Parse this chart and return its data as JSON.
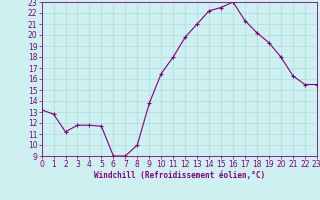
{
  "hours": [
    0,
    1,
    2,
    3,
    4,
    5,
    6,
    7,
    8,
    9,
    10,
    11,
    12,
    13,
    14,
    15,
    16,
    17,
    18,
    19,
    20,
    21,
    22,
    23
  ],
  "values": [
    13.2,
    12.8,
    11.2,
    11.8,
    11.8,
    11.7,
    9.0,
    9.0,
    10.0,
    13.8,
    16.5,
    18.0,
    19.8,
    21.0,
    22.2,
    22.5,
    23.0,
    21.3,
    20.2,
    19.3,
    18.0,
    16.3,
    15.5,
    15.5
  ],
  "line_color": "#800080",
  "marker": "+",
  "marker_size": 3,
  "bg_color": "#cff0f0",
  "grid_color": "#aadddd",
  "tick_color": "#800080",
  "label_color": "#800080",
  "xlabel": "Windchill (Refroidissement éolien,°C)",
  "ylim": [
    9,
    23
  ],
  "xlim": [
    0,
    23
  ],
  "yticks": [
    9,
    10,
    11,
    12,
    13,
    14,
    15,
    16,
    17,
    18,
    19,
    20,
    21,
    22,
    23
  ],
  "xticks": [
    0,
    1,
    2,
    3,
    4,
    5,
    6,
    7,
    8,
    9,
    10,
    11,
    12,
    13,
    14,
    15,
    16,
    17,
    18,
    19,
    20,
    21,
    22,
    23
  ],
  "tick_fontsize": 5.5,
  "xlabel_fontsize": 5.5
}
